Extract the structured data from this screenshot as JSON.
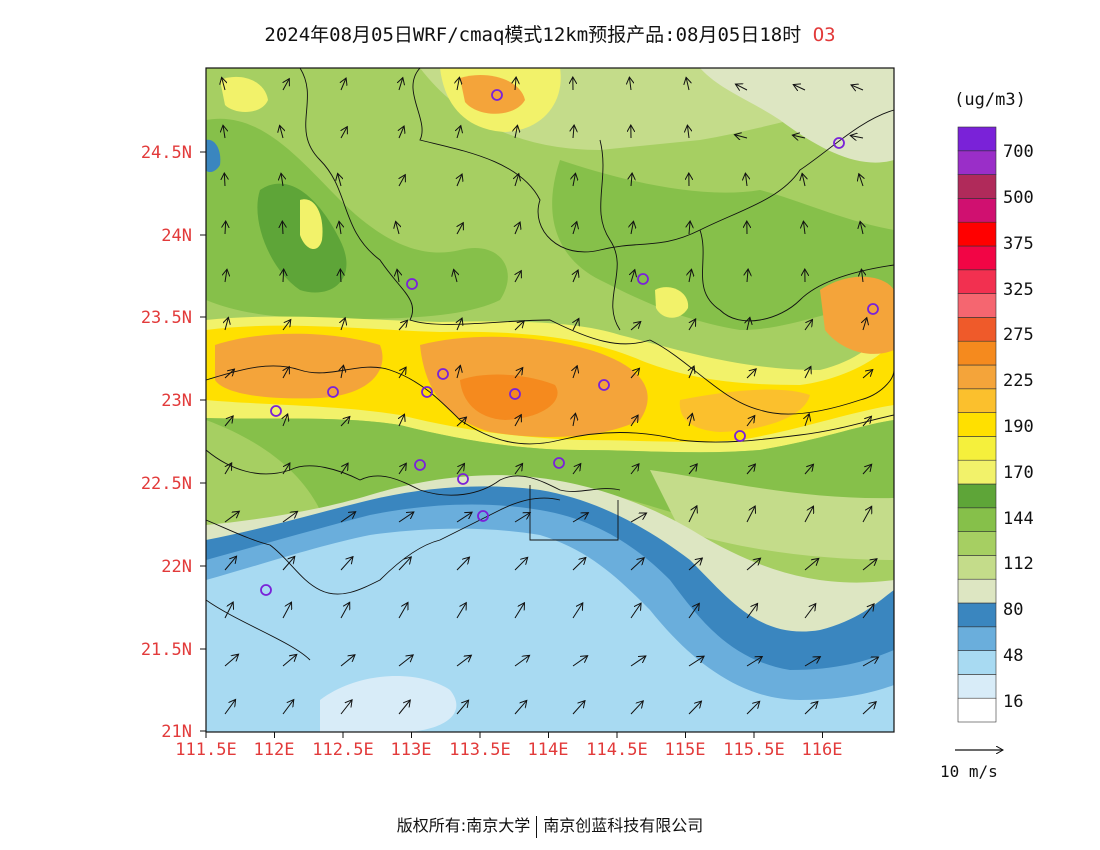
{
  "title": {
    "main": "2024年08月05日WRF/cmaq模式12km预报产品:08月05日18时",
    "pollutant": "O3"
  },
  "axes": {
    "lat_labels": [
      "24.5N",
      "24N",
      "23.5N",
      "23N",
      "22.5N",
      "22N",
      "21.5N",
      "21N"
    ],
    "lon_labels": [
      "111.5E",
      "112E",
      "112.5E",
      "113E",
      "113.5E",
      "114E",
      "114.5E",
      "115E",
      "115.5E",
      "116E"
    ]
  },
  "colorbar": {
    "unit": "(ug/m3)",
    "labels": [
      "700",
      "500",
      "375",
      "325",
      "275",
      "225",
      "190",
      "170",
      "144",
      "112",
      "80",
      "48",
      "16"
    ],
    "colors": [
      "#ffffff",
      "#d8ecf8",
      "#a8daf2",
      "#6aaedc",
      "#3a86bf",
      "#dde6c2",
      "#c4dc8a",
      "#a6cf62",
      "#86c04a",
      "#5ea538",
      "#f2f26a",
      "#f5f03c",
      "#ffe000",
      "#fbc02d",
      "#f4a43a",
      "#f58a1e",
      "#ef5a2a",
      "#f56670",
      "#f23050",
      "#f20545",
      "#ff0000",
      "#d01070",
      "#b02a5a",
      "#9a2ec8",
      "#7a22d8"
    ]
  },
  "wind_reference": "10 m/s",
  "copyright": {
    "prefix": "版权所有:",
    "org1": "南京大学",
    "org2": "南京创蓝科技有限公司"
  },
  "stations": 19
}
